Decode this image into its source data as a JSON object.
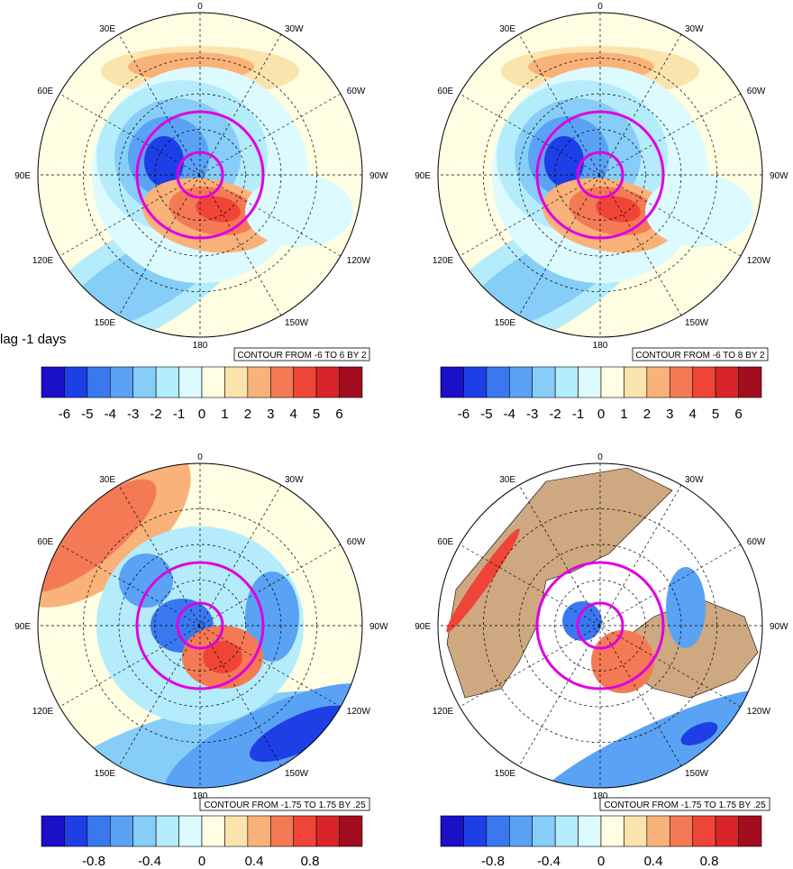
{
  "lag_label": "lag -1 days",
  "palette": [
    "#1b0fc8",
    "#1e3ee6",
    "#3a78f0",
    "#5aa2f4",
    "#86cdf8",
    "#b4ecfb",
    "#ddfbff",
    "#fffde2",
    "#fbe3ae",
    "#f9b279",
    "#f47a55",
    "#ef4539",
    "#d9252a",
    "#a30d1f"
  ],
  "land_color": "#cea880",
  "ring_color": "#e000e0",
  "lon_labels": [
    "0",
    "30W",
    "60W",
    "90W",
    "120W",
    "150W",
    "180",
    "150E",
    "120E",
    "90E",
    "60E",
    "30E"
  ],
  "panels": [
    {
      "id": "top-left",
      "info": "CONTOUR FROM -6 TO 6 BY 2",
      "colorbar_ticks": [
        "-6",
        "-5",
        "-4",
        "-3",
        "-2",
        "-1",
        "0",
        "1",
        "2",
        "3",
        "4",
        "5",
        "6"
      ]
    },
    {
      "id": "top-right",
      "info": "CONTOUR FROM -6 TO 8 BY 2",
      "colorbar_ticks": [
        "-6",
        "-5",
        "-4",
        "-3",
        "-2",
        "-1",
        "0",
        "1",
        "2",
        "3",
        "4",
        "5",
        "6"
      ]
    },
    {
      "id": "bottom-left",
      "info": "CONTOUR FROM -1.75 TO 1.75 BY .25",
      "colorbar_ticks": [
        "-0.8",
        "-0.4",
        "0",
        "0.4",
        "0.8"
      ]
    },
    {
      "id": "bottom-right",
      "info": "CONTOUR FROM -1.75 TO 1.75 BY .25",
      "colorbar_ticks": [
        "-0.8",
        "-0.4",
        "0",
        "0.4",
        "0.8"
      ]
    }
  ]
}
